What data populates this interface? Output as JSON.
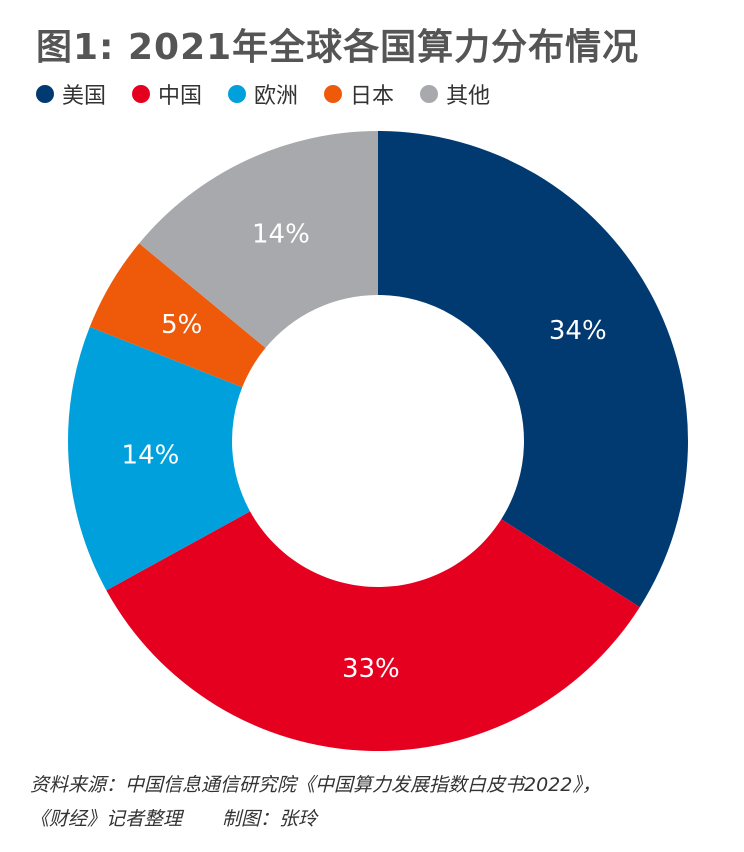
{
  "chart_data": {
    "type": "pie",
    "title": "图1: 2021年全球各国算力分布情况",
    "donut": true,
    "categories": [
      "美国",
      "中国",
      "欧洲",
      "日本",
      "其他"
    ],
    "values": [
      34,
      33,
      14,
      5,
      14
    ],
    "labels": [
      "34%",
      "33%",
      "14%",
      "5%",
      "14%"
    ],
    "colors": [
      "#003A70",
      "#E60020",
      "#00A0DC",
      "#EE5A0A",
      "#A8A9AC"
    ],
    "legend_placement": "top-left",
    "start_angle": "12 o'clock",
    "direction": "clockwise"
  },
  "footer": {
    "line1": "资料来源：中国信息通信研究院《中国算力发展指数白皮书2022》，",
    "line2a": "《财经》记者整理",
    "line2b": "制图：张玲"
  }
}
